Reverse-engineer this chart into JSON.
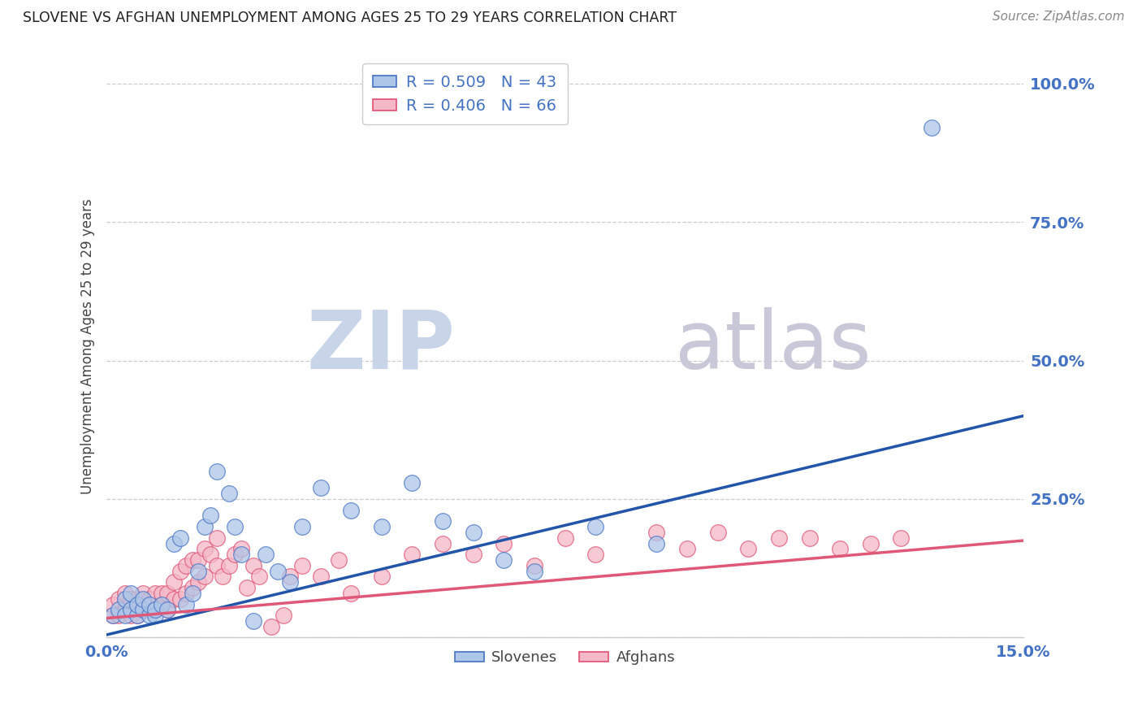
{
  "title": "SLOVENE VS AFGHAN UNEMPLOYMENT AMONG AGES 25 TO 29 YEARS CORRELATION CHART",
  "source": "Source: ZipAtlas.com",
  "ylabel": "Unemployment Among Ages 25 to 29 years",
  "xlim": [
    0.0,
    0.15
  ],
  "ylim": [
    0.0,
    1.05
  ],
  "xticks": [
    0.0,
    0.05,
    0.1,
    0.15
  ],
  "xticklabels": [
    "0.0%",
    "",
    "",
    "15.0%"
  ],
  "yticks": [
    0.0,
    0.25,
    0.5,
    0.75,
    1.0
  ],
  "yticklabels": [
    "",
    "25.0%",
    "50.0%",
    "75.0%",
    "100.0%"
  ],
  "slovene_fill_color": "#AEC6E8",
  "slovene_edge_color": "#4472C4",
  "afghan_fill_color": "#F4B8C8",
  "afghan_edge_color": "#E05070",
  "slovene_line_color": "#2255AA",
  "afghan_line_color": "#E05878",
  "tick_color": "#4472C4",
  "slovene_R": 0.509,
  "slovene_N": 43,
  "afghan_R": 0.406,
  "afghan_N": 66,
  "watermark_zip": "ZIP",
  "watermark_atlas": "atlas",
  "watermark_color_zip": "#C8D4E8",
  "watermark_color_atlas": "#C8C8D8",
  "legend_label_slovene": "Slovenes",
  "legend_label_afghan": "Afghans",
  "slovene_line_x0": 0.0,
  "slovene_line_y0": 0.005,
  "slovene_line_x1": 0.15,
  "slovene_line_y1": 0.4,
  "afghan_line_x0": 0.0,
  "afghan_line_y0": 0.035,
  "afghan_line_x1": 0.15,
  "afghan_line_y1": 0.175,
  "slovene_x": [
    0.001,
    0.002,
    0.003,
    0.003,
    0.004,
    0.004,
    0.005,
    0.005,
    0.006,
    0.006,
    0.007,
    0.007,
    0.008,
    0.008,
    0.009,
    0.01,
    0.011,
    0.012,
    0.013,
    0.014,
    0.015,
    0.016,
    0.017,
    0.018,
    0.02,
    0.021,
    0.022,
    0.024,
    0.026,
    0.028,
    0.03,
    0.032,
    0.035,
    0.04,
    0.045,
    0.05,
    0.055,
    0.06,
    0.065,
    0.07,
    0.08,
    0.09,
    0.135
  ],
  "slovene_y": [
    0.04,
    0.05,
    0.04,
    0.07,
    0.05,
    0.08,
    0.04,
    0.06,
    0.05,
    0.07,
    0.04,
    0.06,
    0.04,
    0.05,
    0.06,
    0.05,
    0.17,
    0.18,
    0.06,
    0.08,
    0.12,
    0.2,
    0.22,
    0.3,
    0.26,
    0.2,
    0.15,
    0.03,
    0.15,
    0.12,
    0.1,
    0.2,
    0.27,
    0.23,
    0.2,
    0.28,
    0.21,
    0.19,
    0.14,
    0.12,
    0.2,
    0.17,
    0.92
  ],
  "afghan_x": [
    0.001,
    0.001,
    0.002,
    0.002,
    0.003,
    0.003,
    0.004,
    0.004,
    0.005,
    0.005,
    0.006,
    0.006,
    0.007,
    0.007,
    0.008,
    0.008,
    0.009,
    0.009,
    0.01,
    0.01,
    0.011,
    0.011,
    0.012,
    0.012,
    0.013,
    0.013,
    0.014,
    0.014,
    0.015,
    0.015,
    0.016,
    0.016,
    0.017,
    0.018,
    0.018,
    0.019,
    0.02,
    0.021,
    0.022,
    0.023,
    0.024,
    0.025,
    0.027,
    0.029,
    0.03,
    0.032,
    0.035,
    0.038,
    0.04,
    0.045,
    0.05,
    0.055,
    0.06,
    0.065,
    0.07,
    0.075,
    0.08,
    0.09,
    0.095,
    0.1,
    0.105,
    0.11,
    0.115,
    0.12,
    0.125,
    0.13
  ],
  "afghan_y": [
    0.04,
    0.06,
    0.04,
    0.07,
    0.05,
    0.08,
    0.04,
    0.07,
    0.04,
    0.07,
    0.05,
    0.08,
    0.05,
    0.07,
    0.05,
    0.08,
    0.06,
    0.08,
    0.05,
    0.08,
    0.07,
    0.1,
    0.07,
    0.12,
    0.08,
    0.13,
    0.09,
    0.14,
    0.1,
    0.14,
    0.11,
    0.16,
    0.15,
    0.13,
    0.18,
    0.11,
    0.13,
    0.15,
    0.16,
    0.09,
    0.13,
    0.11,
    0.02,
    0.04,
    0.11,
    0.13,
    0.11,
    0.14,
    0.08,
    0.11,
    0.15,
    0.17,
    0.15,
    0.17,
    0.13,
    0.18,
    0.15,
    0.19,
    0.16,
    0.19,
    0.16,
    0.18,
    0.18,
    0.16,
    0.17,
    0.18
  ]
}
